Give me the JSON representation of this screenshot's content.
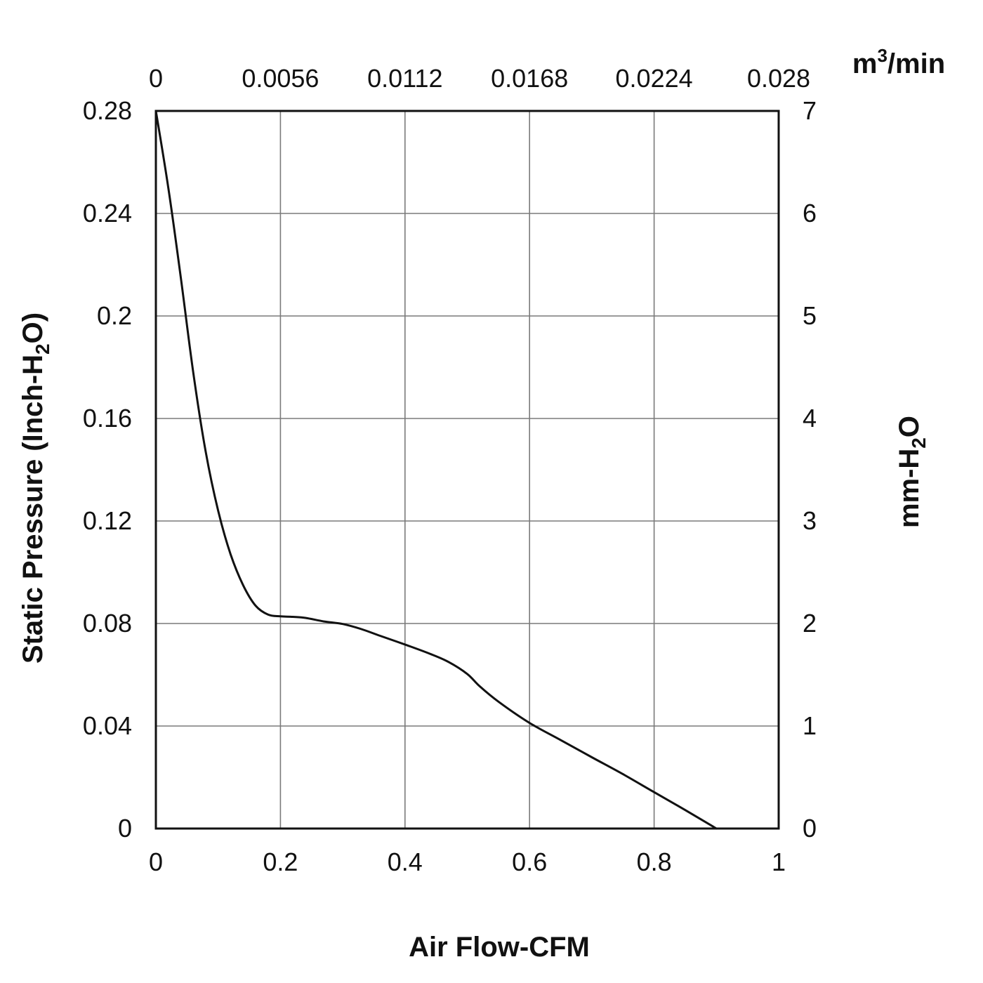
{
  "chart_data": {
    "type": "line",
    "x_primary": {
      "label": "Air Flow-CFM",
      "range": [
        0,
        1
      ],
      "ticks": [
        "0",
        "0.2",
        "0.4",
        "0.6",
        "0.8",
        "1"
      ]
    },
    "x_secondary": {
      "label_base": "m",
      "label_sup": "3",
      "label_rest": "/min",
      "range": [
        0,
        0.028
      ],
      "ticks": [
        "0",
        "0.0056",
        "0.0112",
        "0.0168",
        "0.0224",
        "0.028"
      ]
    },
    "y_primary": {
      "label_pre": "Static Pressure (Inch-H",
      "label_sub": "2",
      "label_post": "O)",
      "range": [
        0,
        0.28
      ],
      "ticks": [
        "0",
        "0.04",
        "0.08",
        "0.12",
        "0.16",
        "0.2",
        "0.24",
        "0.28"
      ]
    },
    "y_secondary": {
      "label_pre": "mm-H",
      "label_sub": "2",
      "label_post": "O",
      "range": [
        0,
        7
      ],
      "ticks": [
        "0",
        "1",
        "2",
        "3",
        "4",
        "5",
        "6",
        "7"
      ]
    },
    "grid": true,
    "line_color": "#111111",
    "series": [
      {
        "x": [
          0,
          0.02,
          0.04,
          0.06,
          0.08,
          0.1,
          0.12,
          0.14,
          0.16,
          0.18,
          0.2,
          0.22,
          0.24,
          0.27,
          0.3,
          0.33,
          0.36,
          0.4,
          0.44,
          0.47,
          0.5,
          0.52,
          0.55,
          0.6,
          0.65,
          0.7,
          0.75,
          0.8,
          0.85,
          0.9
        ],
        "y": [
          0.28,
          0.25,
          0.215,
          0.178,
          0.147,
          0.124,
          0.107,
          0.095,
          0.087,
          0.0835,
          0.0828,
          0.0826,
          0.0822,
          0.0808,
          0.0798,
          0.0778,
          0.0752,
          0.0718,
          0.0682,
          0.065,
          0.0603,
          0.0555,
          0.0495,
          0.0412,
          0.0345,
          0.0278,
          0.0212,
          0.0142,
          0.0072,
          0
        ]
      }
    ]
  }
}
